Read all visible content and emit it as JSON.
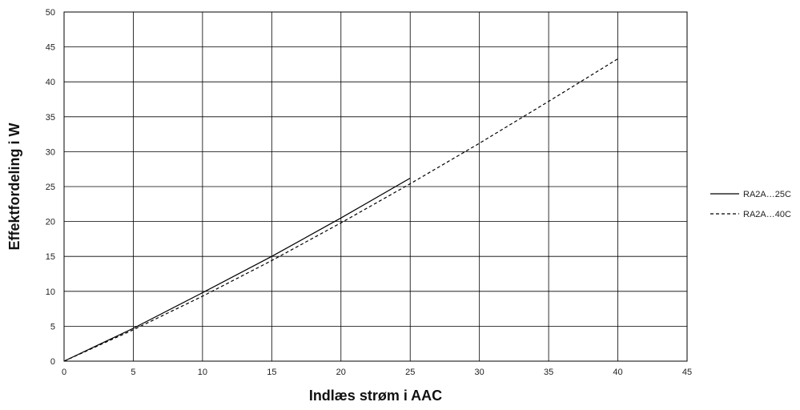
{
  "chart_data": {
    "type": "line",
    "xlabel": "Indlæs strøm i AAC",
    "ylabel": "Effektfordeling i W",
    "xlim": [
      0,
      45
    ],
    "ylim": [
      0,
      50
    ],
    "xticks": [
      0,
      5,
      10,
      15,
      20,
      25,
      30,
      35,
      40,
      45
    ],
    "yticks": [
      0,
      5,
      10,
      15,
      20,
      25,
      30,
      35,
      40,
      45,
      50
    ],
    "grid": true,
    "legend_position": "right",
    "series": [
      {
        "name": "RA2A…25C",
        "style": "solid",
        "color": "#000000",
        "x": [
          0,
          5,
          10,
          15,
          20,
          25
        ],
        "y": [
          0,
          4.7,
          9.8,
          15.0,
          20.5,
          26.2
        ]
      },
      {
        "name": "RA2A…40C",
        "style": "dashed",
        "color": "#000000",
        "x": [
          0,
          5,
          10,
          15,
          20,
          25,
          30,
          35,
          40
        ],
        "y": [
          0,
          4.5,
          9.3,
          14.4,
          19.8,
          25.4,
          31.2,
          37.2,
          43.3
        ]
      }
    ]
  }
}
